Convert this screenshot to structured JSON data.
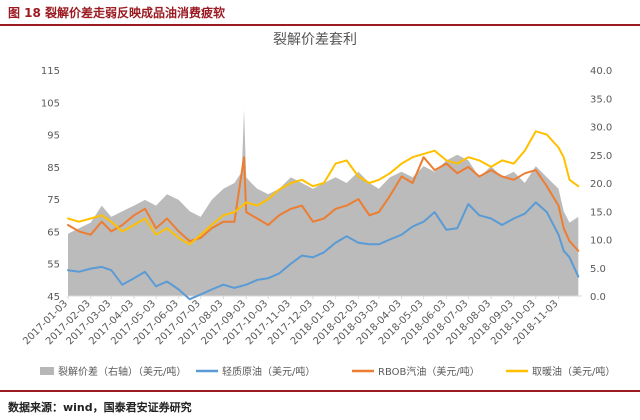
{
  "figure": {
    "title": "图 18 裂解价差走弱反映成品油消费疲软",
    "source": "数据来源：wind，国泰君安证券研究"
  },
  "chart_data": {
    "type": "line",
    "title": "裂解价差套利",
    "x_tick_labels": [
      "2017-01-03",
      "2017-02-03",
      "2017-03-03",
      "2017-04-03",
      "2017-05-03",
      "2017-06-03",
      "2017-07-03",
      "2017-08-03",
      "2017-09-03",
      "2017-10-03",
      "2017-11-03",
      "2017-12-03",
      "2018-01-03",
      "2018-02-03",
      "2018-03-03",
      "2018-04-03",
      "2018-05-03",
      "2018-06-03",
      "2018-07-03",
      "2018-08-03",
      "2018-09-03",
      "2018-10-03",
      "2018-11-03"
    ],
    "left_axis": {
      "range": [
        45,
        115
      ],
      "ticks": [
        45,
        55,
        65,
        75,
        85,
        95,
        105,
        115
      ]
    },
    "right_axis": {
      "range": [
        0,
        40
      ],
      "ticks": [
        "0.0",
        "5.0",
        "10.0",
        "15.0",
        "20.0",
        "25.0",
        "30.0",
        "35.0",
        "40.0"
      ]
    },
    "colors": {
      "spread": "#b7b7b7",
      "wti": "#5b9bd5",
      "rbob": "#ed7d31",
      "heating": "#ffc000"
    },
    "series": [
      {
        "name": "裂解价差（右轴）（美元/吨）",
        "axis": "right",
        "kind": "area",
        "color": "#b7b7b7",
        "x": [
          "2017-01-03",
          "2017-01-18",
          "2017-02-03",
          "2017-02-18",
          "2017-03-03",
          "2017-03-18",
          "2017-04-03",
          "2017-04-18",
          "2017-05-03",
          "2017-05-18",
          "2017-06-03",
          "2017-06-18",
          "2017-07-03",
          "2017-07-18",
          "2017-08-03",
          "2017-08-18",
          "2017-08-28",
          "2017-08-31",
          "2017-09-03",
          "2017-09-10",
          "2017-09-18",
          "2017-10-03",
          "2017-10-18",
          "2017-11-03",
          "2017-11-18",
          "2017-12-03",
          "2017-12-18",
          "2018-01-03",
          "2018-01-18",
          "2018-02-03",
          "2018-02-18",
          "2018-03-03",
          "2018-03-18",
          "2018-04-03",
          "2018-04-18",
          "2018-05-03",
          "2018-05-18",
          "2018-06-03",
          "2018-06-18",
          "2018-07-03",
          "2018-07-18",
          "2018-08-03",
          "2018-08-18",
          "2018-09-03",
          "2018-09-18",
          "2018-10-03",
          "2018-10-18",
          "2018-11-03",
          "2018-11-10",
          "2018-11-18",
          "2018-11-30"
        ],
        "values": [
          11,
          12,
          13,
          16,
          14,
          15,
          16,
          17,
          16,
          18,
          17,
          15,
          14,
          17,
          19,
          20,
          22,
          33,
          21,
          20,
          19,
          18,
          19,
          21,
          20,
          19,
          20,
          21,
          20,
          22,
          20,
          19,
          21,
          22,
          21,
          23,
          22,
          24,
          25,
          24,
          21,
          23,
          21,
          22,
          20,
          23,
          21,
          19,
          15,
          13,
          14
        ]
      },
      {
        "name": "轻质原油（美元/吨）",
        "axis": "left",
        "kind": "line",
        "color": "#5b9bd5",
        "x": [
          "2017-01-03",
          "2017-01-18",
          "2017-02-03",
          "2017-02-18",
          "2017-03-03",
          "2017-03-18",
          "2017-04-03",
          "2017-04-18",
          "2017-05-03",
          "2017-05-18",
          "2017-06-03",
          "2017-06-18",
          "2017-07-03",
          "2017-07-18",
          "2017-08-03",
          "2017-08-18",
          "2017-09-03",
          "2017-09-18",
          "2017-10-03",
          "2017-10-18",
          "2017-11-03",
          "2017-11-18",
          "2017-12-03",
          "2017-12-18",
          "2018-01-03",
          "2018-01-18",
          "2018-02-03",
          "2018-02-18",
          "2018-03-03",
          "2018-03-18",
          "2018-04-03",
          "2018-04-18",
          "2018-05-03",
          "2018-05-18",
          "2018-06-03",
          "2018-06-18",
          "2018-07-03",
          "2018-07-18",
          "2018-08-03",
          "2018-08-18",
          "2018-09-03",
          "2018-09-18",
          "2018-10-03",
          "2018-10-18",
          "2018-11-03",
          "2018-11-10",
          "2018-11-18",
          "2018-11-30"
        ],
        "values": [
          53,
          52.5,
          53.5,
          54,
          53,
          48.5,
          50.5,
          52.5,
          48,
          49.5,
          47,
          44,
          45.5,
          47,
          48.5,
          47.5,
          48.5,
          50,
          50.5,
          52,
          55,
          57.5,
          57,
          58.5,
          61.5,
          63.5,
          61.5,
          61,
          61,
          62.5,
          64,
          66.5,
          68,
          71,
          65.5,
          66,
          73.5,
          70,
          69,
          67,
          69,
          70.5,
          74,
          71,
          64,
          59,
          57,
          51
        ]
      },
      {
        "name": "RBOB汽油（美元/吨）",
        "axis": "left",
        "kind": "line",
        "color": "#ed7d31",
        "x": [
          "2017-01-03",
          "2017-01-18",
          "2017-02-03",
          "2017-02-18",
          "2017-03-03",
          "2017-03-18",
          "2017-04-03",
          "2017-04-18",
          "2017-05-03",
          "2017-05-18",
          "2017-06-03",
          "2017-06-18",
          "2017-07-03",
          "2017-07-18",
          "2017-08-03",
          "2017-08-18",
          "2017-08-31",
          "2017-09-03",
          "2017-09-18",
          "2017-10-03",
          "2017-10-18",
          "2017-11-03",
          "2017-11-18",
          "2017-12-03",
          "2017-12-18",
          "2018-01-03",
          "2018-01-18",
          "2018-02-03",
          "2018-02-18",
          "2018-03-03",
          "2018-03-18",
          "2018-04-03",
          "2018-04-18",
          "2018-05-03",
          "2018-05-18",
          "2018-06-03",
          "2018-06-18",
          "2018-07-03",
          "2018-07-18",
          "2018-08-03",
          "2018-08-18",
          "2018-09-03",
          "2018-09-18",
          "2018-10-03",
          "2018-10-18",
          "2018-11-03",
          "2018-11-10",
          "2018-11-18",
          "2018-11-30"
        ],
        "values": [
          67,
          65,
          64,
          68,
          65,
          67,
          70,
          72,
          66,
          69,
          65,
          62,
          63,
          66,
          68,
          68,
          88,
          71,
          69,
          67,
          70,
          72,
          73,
          68,
          69,
          72,
          73,
          75,
          70,
          71,
          76,
          82,
          80,
          88,
          84,
          86,
          83,
          85,
          82,
          84,
          82,
          81,
          83,
          84,
          79,
          73,
          66,
          62,
          59
        ]
      },
      {
        "name": "取暖油（美元/吨）",
        "axis": "left",
        "kind": "line",
        "color": "#ffc000",
        "x": [
          "2017-01-03",
          "2017-01-18",
          "2017-02-03",
          "2017-02-18",
          "2017-03-03",
          "2017-03-18",
          "2017-04-03",
          "2017-04-18",
          "2017-05-03",
          "2017-05-18",
          "2017-06-03",
          "2017-06-18",
          "2017-07-03",
          "2017-07-18",
          "2017-08-03",
          "2017-08-18",
          "2017-09-03",
          "2017-09-18",
          "2017-10-03",
          "2017-10-18",
          "2017-11-03",
          "2017-11-18",
          "2017-12-03",
          "2017-12-18",
          "2018-01-03",
          "2018-01-18",
          "2018-02-03",
          "2018-02-18",
          "2018-03-03",
          "2018-03-18",
          "2018-04-03",
          "2018-04-18",
          "2018-05-03",
          "2018-05-18",
          "2018-06-03",
          "2018-06-18",
          "2018-07-03",
          "2018-07-18",
          "2018-08-03",
          "2018-08-18",
          "2018-09-03",
          "2018-09-18",
          "2018-10-03",
          "2018-10-18",
          "2018-11-03",
          "2018-11-10",
          "2018-11-18",
          "2018-11-30"
        ],
        "values": [
          69,
          68,
          69,
          70,
          68,
          65,
          67,
          69,
          64,
          66,
          63,
          61,
          64,
          67,
          70,
          71,
          74,
          73,
          75,
          78,
          80,
          81,
          79,
          80,
          86,
          87,
          82,
          80,
          81,
          83,
          86,
          88,
          89,
          90,
          87,
          86,
          88,
          87,
          85,
          87,
          86,
          90,
          96,
          95,
          91,
          88,
          81,
          79
        ]
      }
    ],
    "legend": [
      "裂解价差（右轴）（美元/吨）",
      "轻质原油（美元/吨）",
      "RBOB汽油（美元/吨）",
      "取暖油（美元/吨）"
    ],
    "legend_position": "bottom",
    "grid": false
  }
}
